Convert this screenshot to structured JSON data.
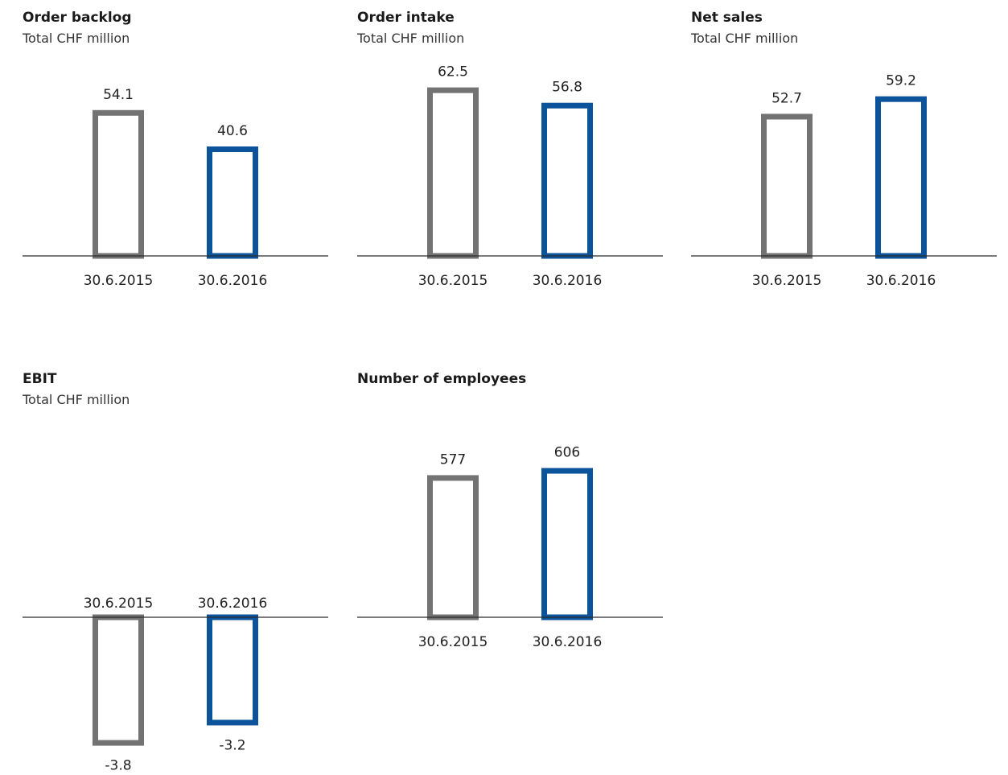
{
  "colors": {
    "series_2015": "#737373",
    "series_2016": "#0b539a",
    "baseline": "#2b2b2b",
    "text": "#222222"
  },
  "chart_data": [
    {
      "type": "bar",
      "title": "Order backlog",
      "subtitle": "Total CHF million",
      "categories": [
        "30.6.2015",
        "30.6.2016"
      ],
      "values": [
        54.1,
        40.6
      ],
      "value_labels": [
        "54.1",
        "40.6"
      ],
      "ylim": [
        0,
        60
      ],
      "grid": false,
      "bar_style": "outline"
    },
    {
      "type": "bar",
      "title": "Order intake",
      "subtitle": "Total CHF million",
      "categories": [
        "30.6.2015",
        "30.6.2016"
      ],
      "values": [
        62.5,
        56.8
      ],
      "value_labels": [
        "62.5",
        "56.8"
      ],
      "ylim": [
        0,
        60
      ],
      "grid": false,
      "bar_style": "outline"
    },
    {
      "type": "bar",
      "title": "Net sales",
      "subtitle": "Total CHF million",
      "categories": [
        "30.6.2015",
        "30.6.2016"
      ],
      "values": [
        52.7,
        59.2
      ],
      "value_labels": [
        "52.7",
        "59.2"
      ],
      "ylim": [
        0,
        60
      ],
      "grid": false,
      "bar_style": "outline"
    },
    {
      "type": "bar",
      "title": "EBIT",
      "subtitle": "Total CHF million",
      "categories": [
        "30.6.2015",
        "30.6.2016"
      ],
      "values": [
        -3.8,
        -3.2
      ],
      "value_labels": [
        "-3.8",
        "-3.2"
      ],
      "ylim": [
        -4,
        0
      ],
      "grid": false,
      "bar_style": "outline"
    },
    {
      "type": "bar",
      "title": "Number of employees",
      "subtitle": "",
      "categories": [
        "30.6.2015",
        "30.6.2016"
      ],
      "values": [
        577,
        606
      ],
      "value_labels": [
        "577",
        "606"
      ],
      "ylim": [
        0,
        620
      ],
      "grid": false,
      "bar_style": "outline"
    }
  ]
}
